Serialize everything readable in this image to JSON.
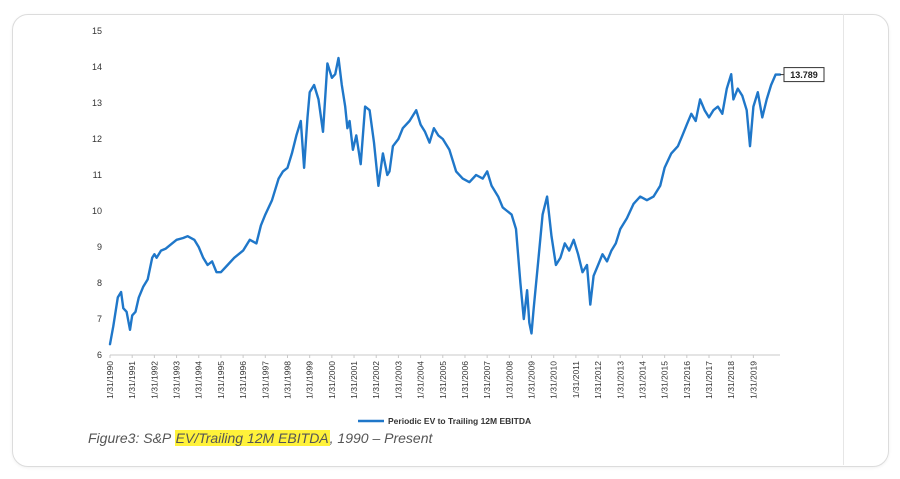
{
  "chart_data": {
    "type": "line",
    "title": "",
    "xlabel": "",
    "ylabel": "",
    "ylim": [
      6,
      15
    ],
    "yticks": [
      6,
      7,
      8,
      9,
      10,
      11,
      12,
      13,
      14,
      15
    ],
    "xlim": [
      1990,
      2020.2
    ],
    "xtick_labels": [
      "1/31/1990",
      "1/31/1991",
      "1/31/1992",
      "1/31/1993",
      "1/31/1994",
      "1/31/1995",
      "1/31/1996",
      "1/31/1997",
      "1/31/1998",
      "1/31/1999",
      "1/31/2000",
      "1/31/2001",
      "1/31/2002",
      "1/31/2003",
      "1/31/2004",
      "1/31/2005",
      "1/31/2006",
      "1/31/2007",
      "1/31/2008",
      "1/31/2009",
      "1/31/2010",
      "1/31/2011",
      "1/31/2012",
      "1/31/2013",
      "1/31/2014",
      "1/31/2015",
      "1/31/2016",
      "1/31/2017",
      "1/31/2018",
      "1/31/2019"
    ],
    "grid": false,
    "legend_position": "bottom",
    "series": [
      {
        "name": "Periodic EV to Trailing 12M EBITDA",
        "color": "#1f77c9",
        "x": [
          1990.0,
          1990.15,
          1990.35,
          1990.5,
          1990.6,
          1990.75,
          1990.9,
          1991.0,
          1991.15,
          1991.3,
          1991.5,
          1991.7,
          1991.9,
          1992.0,
          1992.1,
          1992.3,
          1992.5,
          1992.8,
          1993.0,
          1993.3,
          1993.5,
          1993.8,
          1994.0,
          1994.2,
          1994.4,
          1994.6,
          1994.8,
          1995.0,
          1995.3,
          1995.6,
          1996.0,
          1996.3,
          1996.6,
          1996.8,
          1997.0,
          1997.3,
          1997.6,
          1997.8,
          1998.0,
          1998.2,
          1998.4,
          1998.6,
          1998.75,
          1998.9,
          1999.0,
          1999.2,
          1999.4,
          1999.6,
          1999.8,
          2000.0,
          2000.15,
          2000.3,
          2000.45,
          2000.6,
          2000.7,
          2000.8,
          2000.95,
          2001.1,
          2001.3,
          2001.5,
          2001.7,
          2001.9,
          2002.1,
          2002.3,
          2002.5,
          2002.6,
          2002.75,
          2003.0,
          2003.2,
          2003.5,
          2003.8,
          2004.0,
          2004.2,
          2004.4,
          2004.6,
          2004.8,
          2005.0,
          2005.3,
          2005.6,
          2005.9,
          2006.2,
          2006.5,
          2006.8,
          2007.0,
          2007.2,
          2007.5,
          2007.7,
          2007.9,
          2008.1,
          2008.3,
          2008.5,
          2008.65,
          2008.8,
          2008.9,
          2009.0,
          2009.1,
          2009.3,
          2009.5,
          2009.7,
          2009.9,
          2010.1,
          2010.3,
          2010.5,
          2010.7,
          2010.9,
          2011.1,
          2011.3,
          2011.5,
          2011.65,
          2011.8,
          2012.0,
          2012.2,
          2012.4,
          2012.6,
          2012.8,
          2013.0,
          2013.3,
          2013.6,
          2013.9,
          2014.2,
          2014.5,
          2014.8,
          2015.0,
          2015.3,
          2015.6,
          2015.8,
          2016.0,
          2016.2,
          2016.4,
          2016.6,
          2016.8,
          2017.0,
          2017.2,
          2017.4,
          2017.6,
          2017.8,
          2018.0,
          2018.1,
          2018.3,
          2018.5,
          2018.7,
          2018.85,
          2019.0,
          2019.2,
          2019.4,
          2019.6,
          2019.8,
          2020.0,
          2020.2
        ],
        "values": [
          6.3,
          6.8,
          7.6,
          7.75,
          7.3,
          7.2,
          6.7,
          7.1,
          7.2,
          7.6,
          7.9,
          8.1,
          8.7,
          8.8,
          8.7,
          8.9,
          8.95,
          9.1,
          9.2,
          9.25,
          9.3,
          9.2,
          9.0,
          8.7,
          8.5,
          8.6,
          8.3,
          8.3,
          8.5,
          8.7,
          8.9,
          9.2,
          9.1,
          9.6,
          9.9,
          10.3,
          10.9,
          11.1,
          11.2,
          11.6,
          12.1,
          12.5,
          11.2,
          12.6,
          13.3,
          13.5,
          13.1,
          12.2,
          14.1,
          13.7,
          13.8,
          14.25,
          13.5,
          12.9,
          12.3,
          12.5,
          11.7,
          12.1,
          11.3,
          12.9,
          12.8,
          11.9,
          10.7,
          11.6,
          11.0,
          11.1,
          11.8,
          12.0,
          12.3,
          12.5,
          12.8,
          12.4,
          12.2,
          11.9,
          12.3,
          12.1,
          12.0,
          11.7,
          11.1,
          10.9,
          10.8,
          11.0,
          10.9,
          11.1,
          10.7,
          10.4,
          10.1,
          10.0,
          9.9,
          9.5,
          8.0,
          7.0,
          7.8,
          6.9,
          6.6,
          7.3,
          8.6,
          9.9,
          10.4,
          9.3,
          8.5,
          8.7,
          9.1,
          8.9,
          9.2,
          8.8,
          8.3,
          8.5,
          7.4,
          8.2,
          8.5,
          8.8,
          8.6,
          8.9,
          9.1,
          9.5,
          9.8,
          10.2,
          10.4,
          10.3,
          10.4,
          10.7,
          11.2,
          11.6,
          11.8,
          12.1,
          12.4,
          12.7,
          12.5,
          13.1,
          12.8,
          12.6,
          12.8,
          12.9,
          12.7,
          13.4,
          13.8,
          13.1,
          13.4,
          13.2,
          12.8,
          11.8,
          12.9,
          13.3,
          12.6,
          13.1,
          13.5,
          13.789,
          13.789
        ]
      }
    ],
    "annotations": [
      {
        "text": "13.789",
        "x": 2020.2,
        "y": 13.789
      }
    ]
  },
  "caption": {
    "prefix": "Figure3: S&P ",
    "highlight": "EV/Trailing 12M EBITDA",
    "suffix": ",  1990 – Present"
  }
}
